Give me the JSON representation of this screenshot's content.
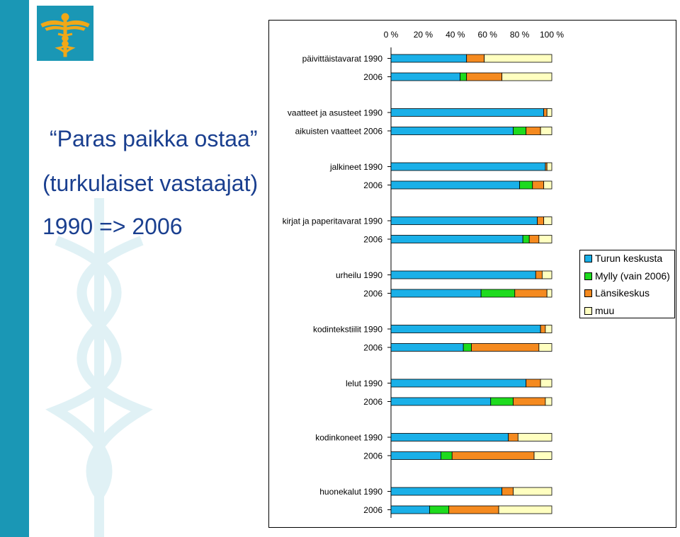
{
  "slide": {
    "title_line1": "“Paras paikka ostaa”",
    "title_line2": "(turkulaiset vastaajat)",
    "title_line3": "1990 => 2006"
  },
  "colors": {
    "sidebar": "#1a97b5",
    "heading": "#1a3f8f",
    "logo": "#f0a818"
  },
  "chart_data": {
    "type": "bar",
    "orientation": "horizontal",
    "stacked": "percent",
    "x_ticks": [
      "0 %",
      "20 %",
      "40 %",
      "60 %",
      "80 %",
      "100 %"
    ],
    "xlim": [
      0,
      100
    ],
    "grid": false,
    "legend_position": "right",
    "series": [
      {
        "name": "Turun keskusta",
        "color": "#1ab0e8"
      },
      {
        "name": "Mylly (vain 2006)",
        "color": "#1edb1e"
      },
      {
        "name": "Länsikeskus",
        "color": "#f58a1f"
      },
      {
        "name": "muu",
        "color": "#ffffc0"
      }
    ],
    "groups": [
      {
        "bars": [
          {
            "label": "päivittäistavarat 1990",
            "values": [
              47,
              0,
              11,
              42
            ]
          },
          {
            "label": "2006",
            "values": [
              43,
              4,
              22,
              31
            ]
          }
        ]
      },
      {
        "bars": [
          {
            "label": "vaatteet ja asusteet 1990",
            "values": [
              95,
              0,
              2,
              3
            ]
          },
          {
            "label": "aikuisten vaatteet 2006",
            "values": [
              76,
              8,
              9,
              7
            ]
          }
        ]
      },
      {
        "bars": [
          {
            "label": "jalkineet 1990",
            "values": [
              96,
              0,
              1,
              3
            ]
          },
          {
            "label": "2006",
            "values": [
              80,
              8,
              7,
              5
            ]
          }
        ]
      },
      {
        "bars": [
          {
            "label": "kirjat ja paperitavarat 1990",
            "values": [
              91,
              0,
              4,
              5
            ]
          },
          {
            "label": "2006",
            "values": [
              82,
              4,
              6,
              8
            ]
          }
        ]
      },
      {
        "bars": [
          {
            "label": "urheilu 1990",
            "values": [
              90,
              0,
              4,
              6
            ]
          },
          {
            "label": "2006",
            "values": [
              56,
              21,
              20,
              3
            ]
          }
        ]
      },
      {
        "bars": [
          {
            "label": "kodintekstiilit 1990",
            "values": [
              93,
              0,
              3,
              4
            ]
          },
          {
            "label": "2006",
            "values": [
              45,
              5,
              42,
              8
            ]
          }
        ]
      },
      {
        "bars": [
          {
            "label": "lelut 1990",
            "values": [
              84,
              0,
              9,
              7
            ]
          },
          {
            "label": "2006",
            "values": [
              62,
              14,
              20,
              4
            ]
          }
        ]
      },
      {
        "bars": [
          {
            "label": "kodinkoneet 1990",
            "values": [
              73,
              0,
              6,
              21
            ]
          },
          {
            "label": "2006",
            "values": [
              31,
              7,
              51,
              11
            ]
          }
        ]
      },
      {
        "bars": [
          {
            "label": "huonekalut 1990",
            "values": [
              69,
              0,
              7,
              24
            ]
          },
          {
            "label": "2006",
            "values": [
              24,
              12,
              31,
              33
            ]
          }
        ]
      }
    ]
  }
}
